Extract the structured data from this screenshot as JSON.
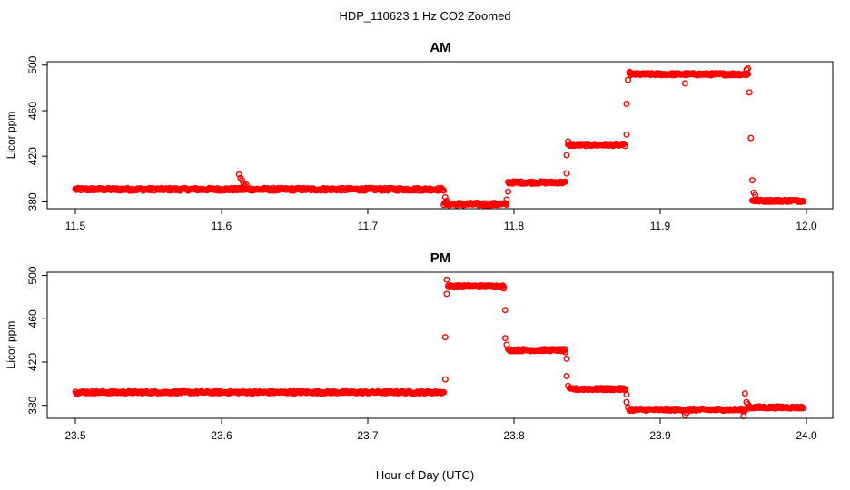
{
  "figure": {
    "title": "HDP_110623  1 Hz CO2 Zoomed",
    "xlabel": "Hour of Day (UTC)"
  },
  "chart_data": [
    {
      "type": "scatter",
      "title": "AM",
      "xlabel": "Hour of Day (UTC)",
      "ylabel": "Licor ppm",
      "xlim": [
        11.5,
        12.0
      ],
      "ylim": [
        374,
        503
      ],
      "xticks": [
        "11.5",
        "11.6",
        "11.7",
        "11.8",
        "11.9",
        "12.0"
      ],
      "yticks": [
        "380",
        "420",
        "460",
        "500"
      ],
      "marker_color": "#ff0000",
      "grid": false,
      "segments": [
        {
          "x0": 11.5,
          "x1": 11.752,
          "y": 391,
          "noise": 1.2
        },
        {
          "x0": 11.752,
          "x1": 11.795,
          "y": 378,
          "noise": 1.2
        },
        {
          "x0": 11.796,
          "x1": 11.835,
          "y": 397,
          "noise": 1.0
        },
        {
          "x0": 11.837,
          "x1": 11.876,
          "y": 430,
          "noise": 1.0
        },
        {
          "x0": 11.879,
          "x1": 11.96,
          "y": 492,
          "noise": 1.0
        },
        {
          "x0": 11.963,
          "x1": 11.998,
          "y": 381,
          "noise": 1.0
        }
      ],
      "points": [
        [
          11.612,
          404
        ],
        [
          11.613,
          401
        ],
        [
          11.614,
          399
        ],
        [
          11.615,
          396
        ],
        [
          11.616,
          394
        ],
        [
          11.617,
          395
        ],
        [
          11.753,
          384
        ],
        [
          11.754,
          381
        ],
        [
          11.795,
          382
        ],
        [
          11.796,
          389
        ],
        [
          11.836,
          405
        ],
        [
          11.836,
          421
        ],
        [
          11.837,
          433
        ],
        [
          11.877,
          439
        ],
        [
          11.877,
          466
        ],
        [
          11.878,
          487
        ],
        [
          11.879,
          494
        ],
        [
          11.917,
          484
        ],
        [
          11.918,
          493
        ],
        [
          11.959,
          496
        ],
        [
          11.96,
          497
        ],
        [
          11.961,
          476
        ],
        [
          11.962,
          436
        ],
        [
          11.963,
          399
        ],
        [
          11.964,
          388
        ],
        [
          11.965,
          386
        ]
      ]
    },
    {
      "type": "scatter",
      "title": "PM",
      "xlabel": "Hour of Day (UTC)",
      "ylabel": "Licor ppm",
      "xlim": [
        23.5,
        24.0
      ],
      "ylim": [
        368,
        503
      ],
      "xticks": [
        "23.5",
        "23.6",
        "23.7",
        "23.8",
        "23.9",
        "24.0"
      ],
      "yticks": [
        "380",
        "420",
        "460",
        "500"
      ],
      "marker_color": "#ff0000",
      "grid": false,
      "segments": [
        {
          "x0": 23.5,
          "x1": 23.752,
          "y": 392,
          "noise": 1.0
        },
        {
          "x0": 23.755,
          "x1": 23.793,
          "y": 490,
          "noise": 1.0
        },
        {
          "x0": 23.796,
          "x1": 23.835,
          "y": 431,
          "noise": 1.0
        },
        {
          "x0": 23.838,
          "x1": 23.876,
          "y": 395,
          "noise": 1.0
        },
        {
          "x0": 23.879,
          "x1": 23.958,
          "y": 376,
          "noise": 1.0
        },
        {
          "x0": 23.961,
          "x1": 23.998,
          "y": 378,
          "noise": 1.0
        }
      ],
      "points": [
        [
          23.753,
          404
        ],
        [
          23.753,
          443
        ],
        [
          23.754,
          483
        ],
        [
          23.754,
          496
        ],
        [
          23.793,
          488
        ],
        [
          23.794,
          468
        ],
        [
          23.794,
          442
        ],
        [
          23.795,
          436
        ],
        [
          23.835,
          429
        ],
        [
          23.836,
          423
        ],
        [
          23.836,
          407
        ],
        [
          23.837,
          398
        ],
        [
          23.876,
          394
        ],
        [
          23.877,
          390
        ],
        [
          23.877,
          383
        ],
        [
          23.878,
          378
        ],
        [
          23.917,
          371
        ],
        [
          23.918,
          373
        ],
        [
          23.957,
          370
        ],
        [
          23.958,
          375
        ],
        [
          23.958,
          391
        ],
        [
          23.959,
          383
        ],
        [
          23.96,
          381
        ],
        [
          23.961,
          379
        ]
      ]
    }
  ]
}
